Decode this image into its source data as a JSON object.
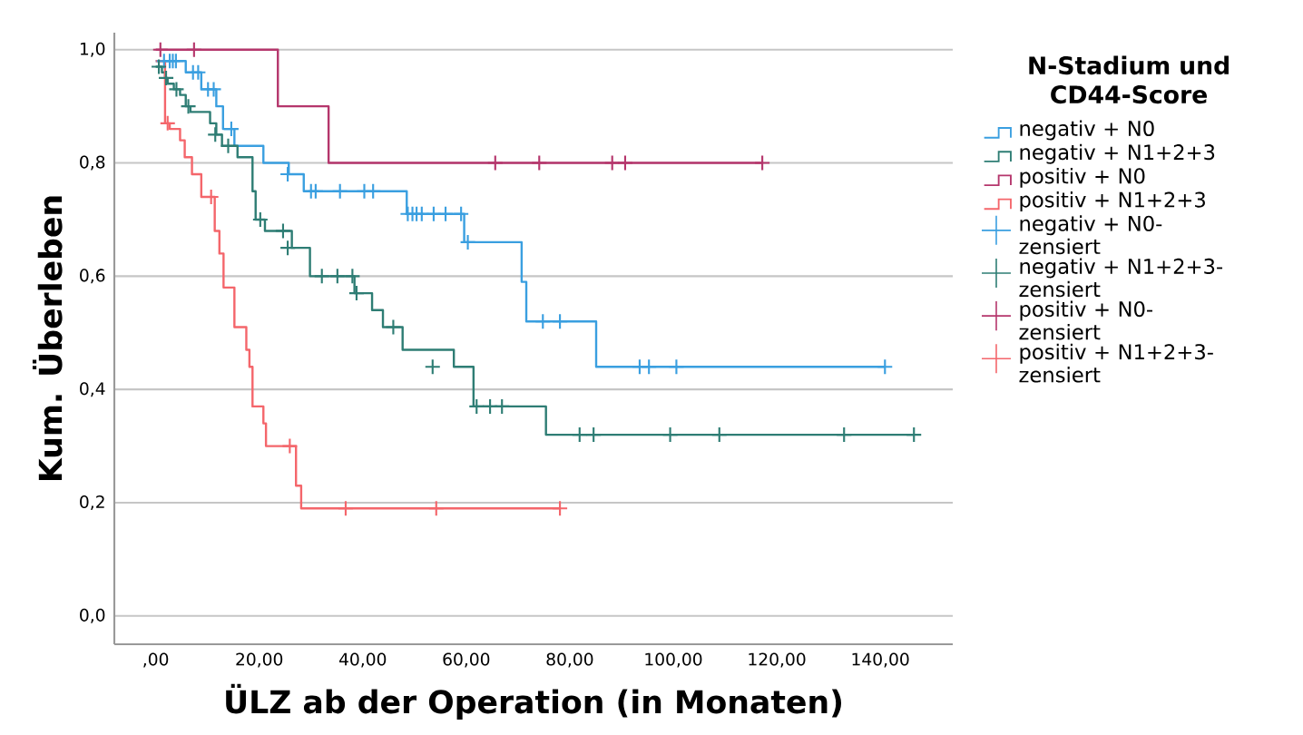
{
  "chart_data": {
    "type": "step",
    "xlabel": "ÜLZ ab der Operation (in Monaten)",
    "ylabel": "Kum. Überleben",
    "legend_title": "N-Stadium und CD44-Score",
    "xlim": [
      -8,
      154
    ],
    "ylim": [
      -0.05,
      1.03
    ],
    "xticks": [
      {
        "value": 0,
        "label": ",00"
      },
      {
        "value": 20,
        "label": "20,00"
      },
      {
        "value": 40,
        "label": "40,00"
      },
      {
        "value": 60,
        "label": "60,00"
      },
      {
        "value": 80,
        "label": "80,00"
      },
      {
        "value": 100,
        "label": "100,00"
      },
      {
        "value": 120,
        "label": "120,00"
      },
      {
        "value": 140,
        "label": "140,00"
      }
    ],
    "yticks": [
      {
        "value": 0,
        "label": "0,0"
      },
      {
        "value": 0.2,
        "label": "0,2"
      },
      {
        "value": 0.4,
        "label": "0,4"
      },
      {
        "value": 0.6,
        "label": "0,6"
      },
      {
        "value": 0.8,
        "label": "0,8"
      },
      {
        "value": 1.0,
        "label": "1,0"
      }
    ],
    "grid": "y",
    "legend": "right",
    "series": [
      {
        "name": "negativ + N0",
        "color": "#3a9fe0",
        "x": [
          0,
          5.8,
          8.8,
          11.7,
          13,
          15.2,
          20.8,
          25.7,
          28.6,
          48.5,
          59.6,
          70.7,
          71.6,
          85.1,
          140.9
        ],
        "values": [
          0.98,
          0.96,
          0.93,
          0.9,
          0.86,
          0.83,
          0.8,
          0.78,
          0.75,
          0.71,
          0.66,
          0.59,
          0.52,
          0.44,
          0.44
        ]
      },
      {
        "name": "negativ + N1+2+3",
        "color": "#2e7d74",
        "x": [
          0,
          1.2,
          1.8,
          2.3,
          3.5,
          4.7,
          5.8,
          6.7,
          10.5,
          11.7,
          12.8,
          15.8,
          18.7,
          19.3,
          21.1,
          26.3,
          29.8,
          38.4,
          41.8,
          43.9,
          47.7,
          57.6,
          61.4,
          75.4,
          146.5
        ],
        "values": [
          0.97,
          0.96,
          0.95,
          0.94,
          0.93,
          0.92,
          0.9,
          0.89,
          0.87,
          0.85,
          0.83,
          0.81,
          0.75,
          0.7,
          0.68,
          0.65,
          0.6,
          0.57,
          0.54,
          0.51,
          0.47,
          0.44,
          0.37,
          0.32,
          0.32
        ]
      },
      {
        "name": "positiv + N0",
        "color": "#b5366c",
        "x": [
          0,
          23.6,
          33.4,
          117.2
        ],
        "values": [
          1.0,
          0.9,
          0.8,
          0.8
        ]
      },
      {
        "name": "positiv + N1+2+3",
        "color": "#f4666b",
        "x": [
          0,
          1.8,
          2.7,
          4.7,
          5.6,
          7,
          8.8,
          11.4,
          12.3,
          13.1,
          15.2,
          17.5,
          18.1,
          18.7,
          20.8,
          21.3,
          27.1,
          28.1,
          78.1
        ],
        "values": [
          0.98,
          0.87,
          0.86,
          0.84,
          0.81,
          0.78,
          0.74,
          0.68,
          0.64,
          0.58,
          0.51,
          0.47,
          0.44,
          0.37,
          0.34,
          0.3,
          0.23,
          0.19,
          0.19
        ]
      },
      {
        "name": "negativ + N0-zensiert",
        "type": "scatter",
        "marker": "cross",
        "color": "#3a9fe0",
        "x": [
          1.6,
          2.7,
          3.3,
          3.9,
          7.2,
          8.2,
          10.1,
          11.2,
          14.6,
          25.5,
          30,
          30.9,
          35.6,
          40.3,
          42,
          48.7,
          49.6,
          50.4,
          51.4,
          53.7,
          56,
          59,
          60.3,
          74.8,
          78.1,
          93.5,
          95.3,
          100.6,
          140.9
        ],
        "values": [
          0.98,
          0.98,
          0.98,
          0.98,
          0.96,
          0.96,
          0.93,
          0.93,
          0.86,
          0.78,
          0.75,
          0.75,
          0.75,
          0.75,
          0.75,
          0.71,
          0.71,
          0.71,
          0.71,
          0.71,
          0.71,
          0.71,
          0.66,
          0.52,
          0.52,
          0.44,
          0.44,
          0.44,
          0.44
        ]
      },
      {
        "name": "negativ + N1+2+3-zensiert",
        "type": "scatter",
        "marker": "cross",
        "color": "#2e7d74",
        "x": [
          0.6,
          2,
          4,
          6.3,
          11.5,
          14,
          20.2,
          24.6,
          25.5,
          32.1,
          35.1,
          38,
          38.8,
          45.9,
          53.5,
          62,
          64.6,
          66.9,
          81.9,
          84.6,
          99.4,
          108.9,
          133,
          146.5
        ],
        "values": [
          0.97,
          0.95,
          0.93,
          0.9,
          0.85,
          0.83,
          0.7,
          0.68,
          0.65,
          0.6,
          0.6,
          0.6,
          0.57,
          0.51,
          0.44,
          0.37,
          0.37,
          0.37,
          0.32,
          0.32,
          0.32,
          0.32,
          0.32,
          0.32
        ]
      },
      {
        "name": "positiv + N0-zensiert",
        "type": "scatter",
        "marker": "cross",
        "color": "#b5366c",
        "x": [
          0.9,
          7.4,
          65.6,
          74.1,
          88.2,
          90.7,
          117.2
        ],
        "values": [
          1.0,
          1.0,
          0.8,
          0.8,
          0.8,
          0.8,
          0.8
        ]
      },
      {
        "name": "positiv + N1+2+3-zensiert",
        "type": "scatter",
        "marker": "cross",
        "color": "#f4666b",
        "x": [
          2.3,
          10.7,
          25.9,
          36.7,
          54.2,
          78.1
        ],
        "values": [
          0.87,
          0.74,
          0.3,
          0.19,
          0.19,
          0.19
        ]
      }
    ]
  }
}
